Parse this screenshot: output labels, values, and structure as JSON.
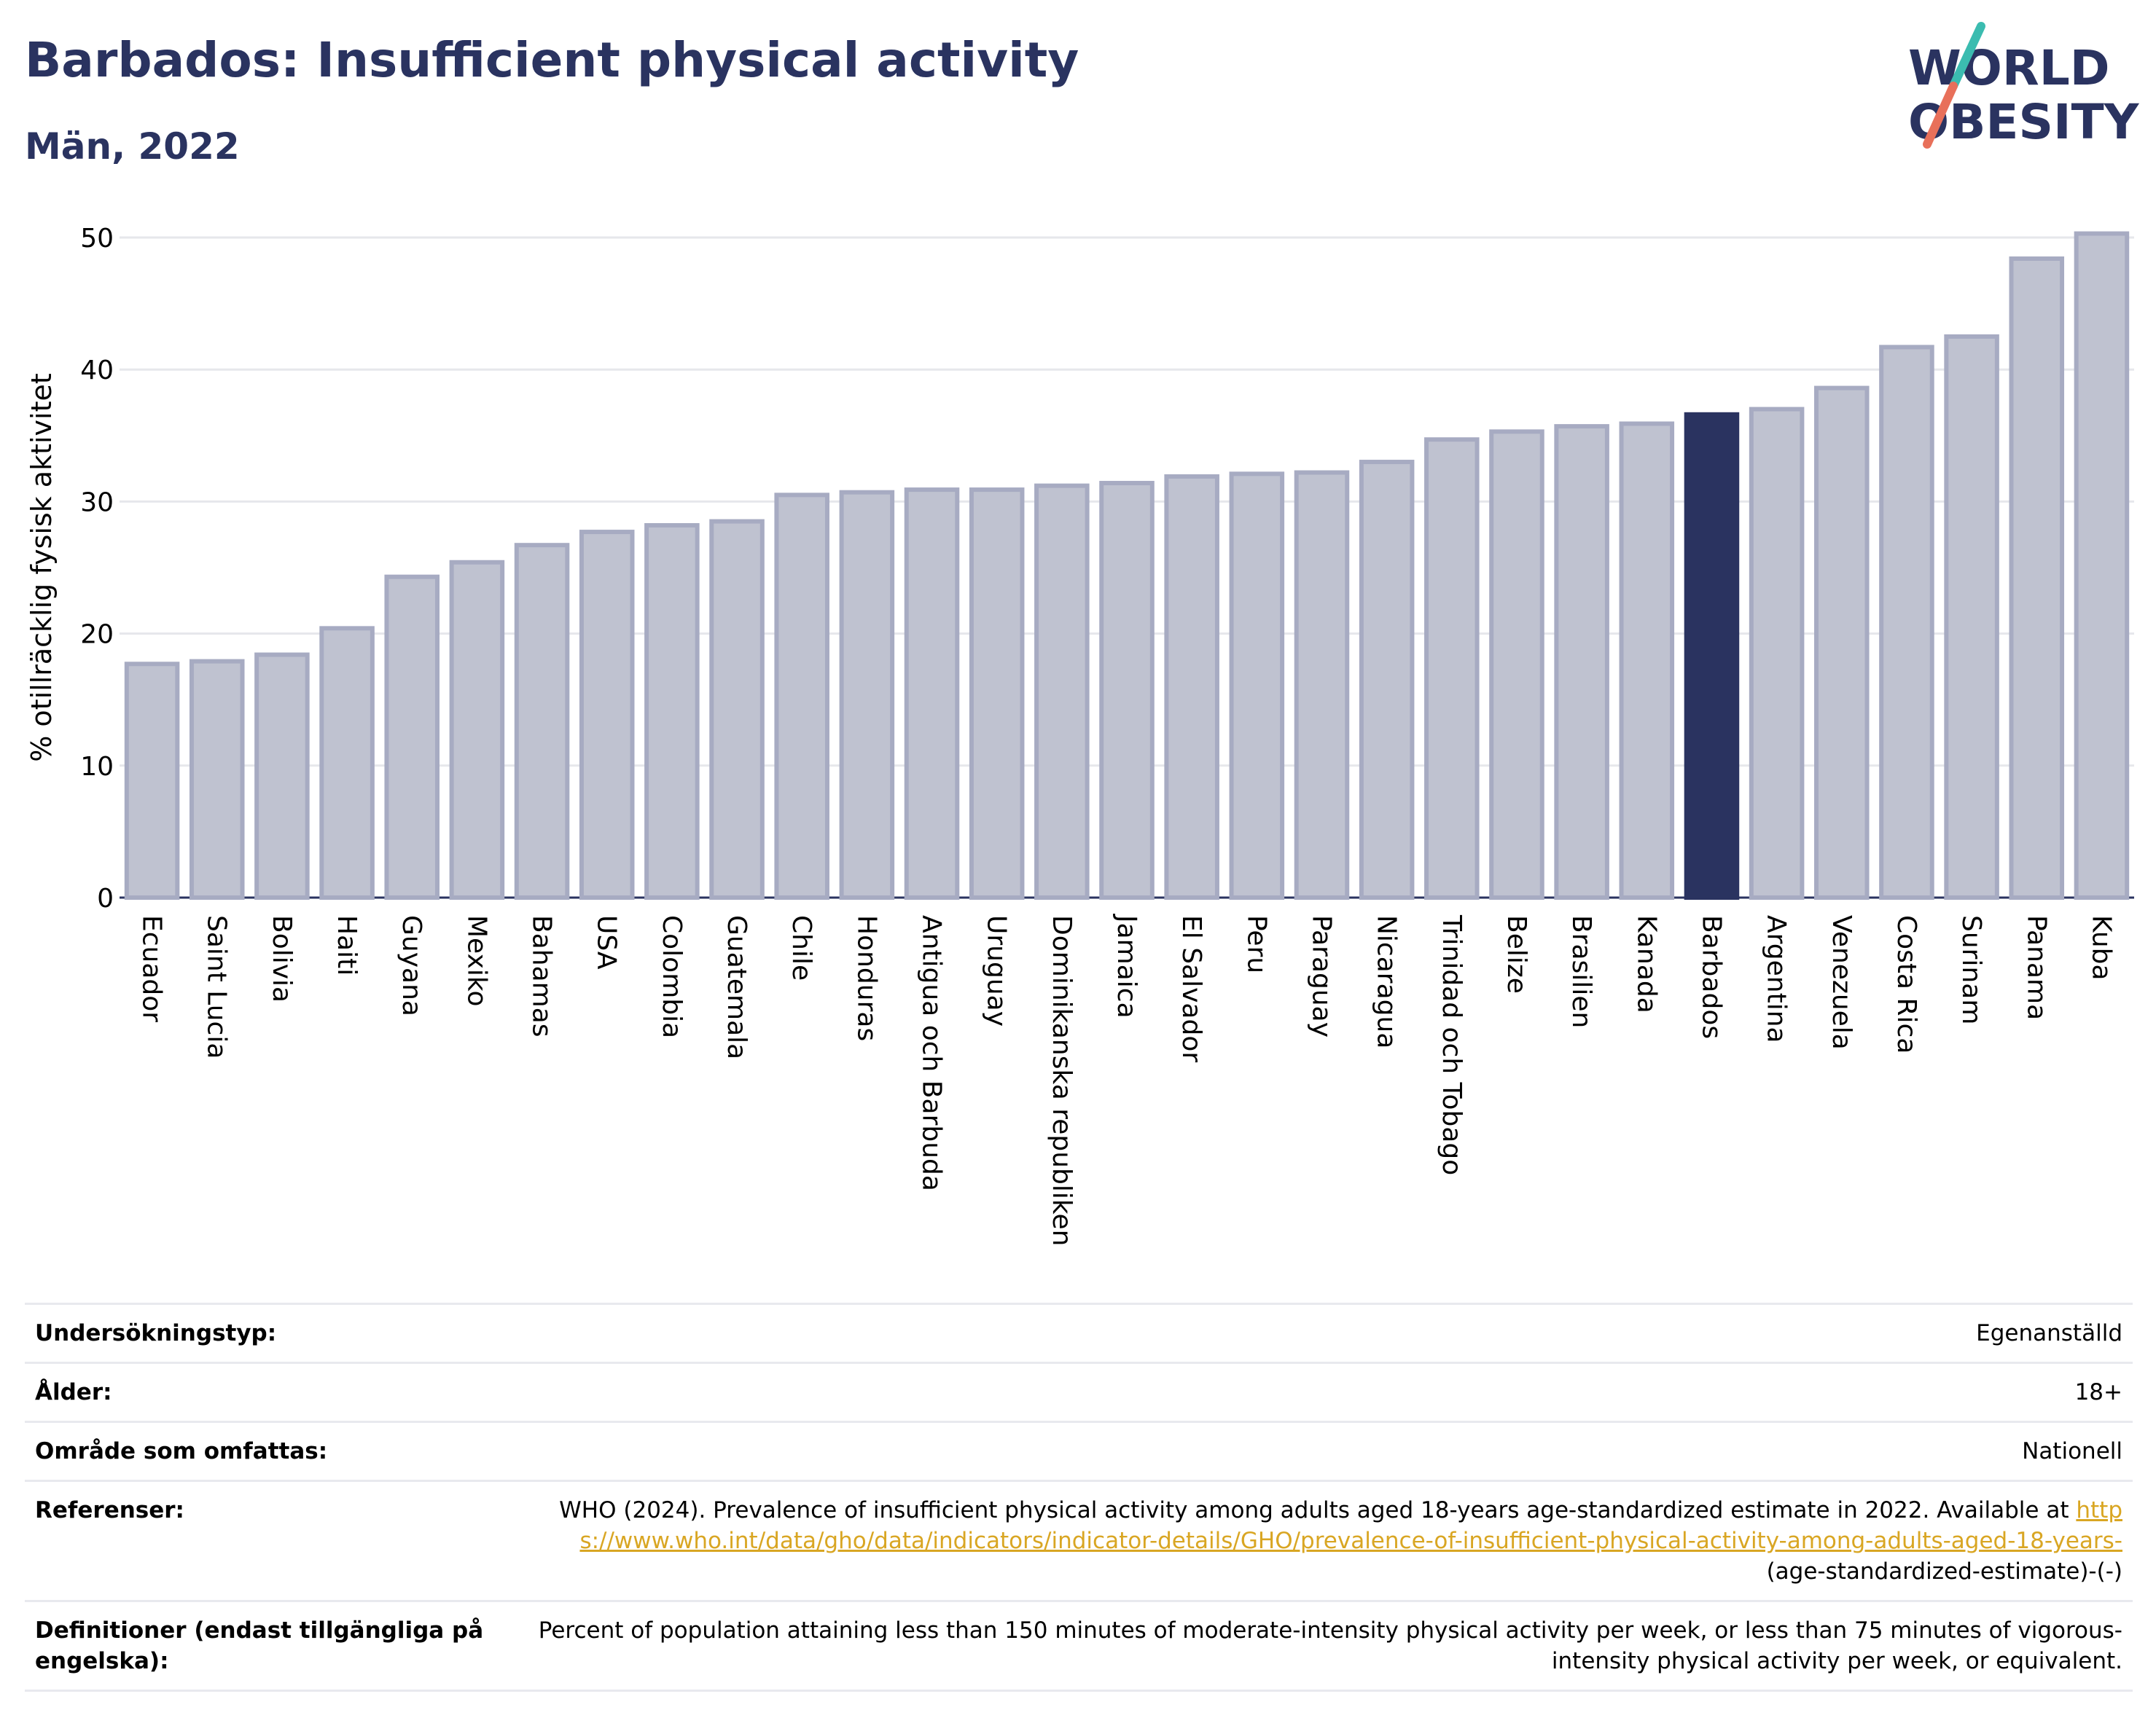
{
  "header": {
    "title": "Barbados: Insufficient physical activity",
    "subtitle": "Män, 2022"
  },
  "logo": {
    "line1": "WORLD",
    "line2": "OBESITY"
  },
  "colors": {
    "title": "#2a3360",
    "bar_default": "#bfc2d0",
    "bar_border": "#a7abc2",
    "bar_highlight": "#2a3360",
    "grid": "#e6e7eb",
    "logo_teal": "#3bbcb0",
    "logo_coral": "#e8705a"
  },
  "chart_data": {
    "type": "bar",
    "ylabel": "% otillräcklig fysisk aktivitet",
    "ylim": [
      0,
      50
    ],
    "yticks": [
      0,
      10,
      20,
      30,
      40,
      50
    ],
    "grid": true,
    "highlight": "Barbados",
    "categories": [
      "Ecuador",
      "Saint Lucia",
      "Bolivia",
      "Haiti",
      "Guyana",
      "Mexiko",
      "Bahamas",
      "USA",
      "Colombia",
      "Guatemala",
      "Chile",
      "Honduras",
      "Antigua och Barbuda",
      "Uruguay",
      "Dominikanska republiken",
      "Jamaica",
      "El Salvador",
      "Peru",
      "Paraguay",
      "Nicaragua",
      "Trinidad och Tobago",
      "Belize",
      "Brasilien",
      "Kanada",
      "Barbados",
      "Argentina",
      "Venezuela",
      "Costa Rica",
      "Surinam",
      "Panama",
      "Kuba"
    ],
    "values": [
      17.7,
      17.9,
      18.4,
      20.4,
      24.3,
      25.4,
      26.7,
      27.7,
      28.2,
      28.5,
      30.5,
      30.7,
      30.9,
      30.9,
      31.2,
      31.4,
      31.9,
      32.1,
      32.2,
      33.0,
      34.7,
      35.3,
      35.7,
      35.9,
      36.6,
      37.0,
      38.6,
      41.7,
      42.5,
      48.4,
      50.3
    ]
  },
  "details": {
    "rows": [
      {
        "label": "Undersökningstyp:",
        "value": "Egenanställd"
      },
      {
        "label": "Ålder:",
        "value": "18+"
      },
      {
        "label": "Område som omfattas:",
        "value": "Nationell"
      }
    ],
    "references": {
      "label": "Referenser:",
      "text": "WHO (2024). Prevalence of insufficient physical activity among adults aged 18-years age-standardized estimate in 2022. Available at",
      "link": "https://www.who.int/data/gho/data/indicators/indicator-details/GHO/prevalence-of-insufficient-physical-activity-among-adults-aged-18-years-",
      "suffix": "(age-standardized-estimate)-(-)"
    },
    "definitions": {
      "label": "Definitioner (endast tillgängliga på engelska):",
      "value": "Percent of population attaining less than 150 minutes of moderate-intensity physical activity per week, or less than 75 minutes of vigorous-intensity physical activity per week, or equivalent."
    }
  }
}
